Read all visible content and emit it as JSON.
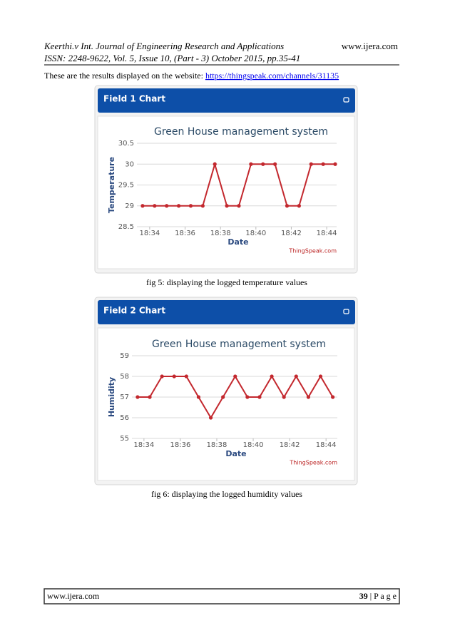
{
  "header": {
    "journal": "Keerthi.v Int. Journal of Engineering Research and Applications",
    "site": "www.ijera.com",
    "issn": "ISSN: 2248-9622, Vol. 5, Issue 10, (Part - 3) October 2015, pp.35-41"
  },
  "body": {
    "text": "These are the results displayed on the website: ",
    "link": "https://thingspeak.com/channels/31135"
  },
  "captions": [
    "fig 5: displaying the logged temperature values",
    "fig 6: displaying the logged humidity values"
  ],
  "footer": {
    "site": "www.ijera.com",
    "page": "39",
    "page_label": "| P a g e"
  },
  "chart_data": [
    {
      "type": "line",
      "panel_title": "Field 1 Chart",
      "title": "Green House management system",
      "x_label": "Date",
      "y_label": "Temperature",
      "credit": "ThingSpeak.com",
      "color": "#c3282e",
      "grid": true,
      "x": [
        1113.6,
        1114.28,
        1114.96,
        1115.64,
        1116.32,
        1117.0,
        1117.68,
        1118.36,
        1119.04,
        1119.72,
        1120.4,
        1121.08,
        1121.76,
        1122.44,
        1123.12,
        1123.8,
        1124.48
      ],
      "values": [
        29,
        29,
        29,
        29,
        29,
        29,
        30,
        29,
        29,
        30,
        30,
        30,
        29,
        29,
        30,
        30,
        30
      ],
      "xlim": [
        1113.28,
        1124.56
      ],
      "xticks": [
        {
          "value": 1114,
          "label": "18:34"
        },
        {
          "value": 1116,
          "label": "18:36"
        },
        {
          "value": 1118,
          "label": "18:38"
        },
        {
          "value": 1120,
          "label": "18:40"
        },
        {
          "value": 1122,
          "label": "18:42"
        },
        {
          "value": 1124,
          "label": "18:44"
        }
      ],
      "ylim": [
        28.5,
        30.5
      ],
      "yticks": [
        28.5,
        29,
        29.5,
        30,
        30.5
      ]
    },
    {
      "type": "line",
      "panel_title": "Field 2 Chart",
      "title": "Green House management system",
      "x_label": "Date",
      "y_label": "Humidity",
      "credit": "ThingSpeak.com",
      "color": "#c3282e",
      "grid": true,
      "x": [
        1113.65,
        1114.32,
        1114.99,
        1115.66,
        1116.33,
        1117.0,
        1117.67,
        1118.34,
        1119.01,
        1119.68,
        1120.35,
        1121.02,
        1121.69,
        1122.36,
        1123.03,
        1123.7,
        1124.37
      ],
      "values": [
        57,
        57,
        58,
        58,
        58,
        57,
        56,
        57,
        58,
        57,
        57,
        58,
        57,
        58,
        57,
        58,
        57
      ],
      "xlim": [
        1113.34,
        1124.62
      ],
      "xticks": [
        {
          "value": 1114,
          "label": "18:34"
        },
        {
          "value": 1116,
          "label": "18:36"
        },
        {
          "value": 1118,
          "label": "18:38"
        },
        {
          "value": 1120,
          "label": "18:40"
        },
        {
          "value": 1122,
          "label": "18:42"
        },
        {
          "value": 1124,
          "label": "18:44"
        }
      ],
      "ylim": [
        55,
        59
      ],
      "yticks": [
        55,
        56,
        57,
        58,
        59
      ]
    }
  ]
}
